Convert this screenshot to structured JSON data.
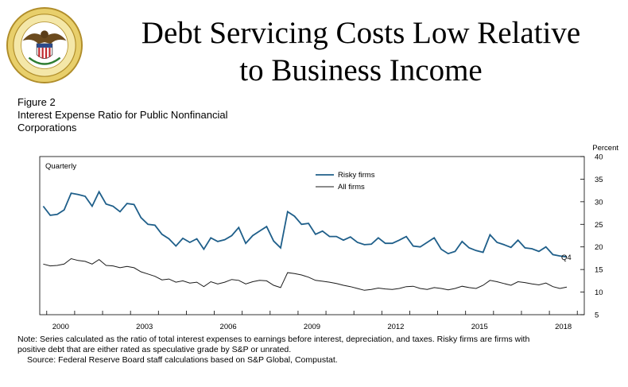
{
  "header": {
    "seal_name": "Board of Governors of the Federal Reserve System seal",
    "title_line1": "Debt Servicing Costs Low Relative",
    "title_line2": "to Business Income"
  },
  "figure": {
    "number": "Figure 2",
    "title_line1": "Interest Expense Ratio for Public Nonfinancial",
    "title_line2": "Corporations"
  },
  "chart_data": {
    "type": "line",
    "title": "Interest Expense Ratio for Public Nonfinancial Corporations",
    "frequency_label": "Quarterly",
    "ylabel": "Percent",
    "ylim": [
      5,
      40
    ],
    "xlim": [
      1999.75,
      2019.25
    ],
    "y_ticks": [
      5,
      10,
      15,
      20,
      25,
      30,
      35,
      40
    ],
    "x_ticks": [
      2000,
      2003,
      2006,
      2009,
      2012,
      2015,
      2018
    ],
    "x_tick_labels": [
      "2000",
      "2003",
      "2006",
      "2009",
      "2012",
      "2015",
      "2018"
    ],
    "end_annotation": "Q4",
    "series": [
      {
        "name": "Risky firms",
        "color": "#1f5f8a",
        "start": 1999.875,
        "step": 0.25,
        "values": [
          29.0,
          27.0,
          27.2,
          28.2,
          31.9,
          31.6,
          31.2,
          29.0,
          32.2,
          29.5,
          29.0,
          27.8,
          29.6,
          29.4,
          26.5,
          25.0,
          24.8,
          22.8,
          21.8,
          20.2,
          21.9,
          21.0,
          21.8,
          19.5,
          22.0,
          21.2,
          21.6,
          22.5,
          24.3,
          20.8,
          22.5,
          23.5,
          24.5,
          21.3,
          19.8,
          27.8,
          26.8,
          25.0,
          25.2,
          22.8,
          23.5,
          22.3,
          22.3,
          21.5,
          22.2,
          21.0,
          20.5,
          20.6,
          22.0,
          20.8,
          20.8,
          21.5,
          22.3,
          20.2,
          20.0,
          21.0,
          22.0,
          19.5,
          18.5,
          19.0,
          21.2,
          19.8,
          19.2,
          18.8,
          22.7,
          21.0,
          20.5,
          19.9,
          21.5,
          19.8,
          19.6,
          19.0,
          20.0,
          18.3,
          18.0,
          17.8
        ]
      },
      {
        "name": "All firms",
        "color": "#1a1a1a",
        "start": 1999.875,
        "step": 0.25,
        "values": [
          16.2,
          15.8,
          15.9,
          16.2,
          17.4,
          17.0,
          16.8,
          16.2,
          17.2,
          15.9,
          15.8,
          15.4,
          15.7,
          15.4,
          14.5,
          14.0,
          13.5,
          12.7,
          12.9,
          12.2,
          12.5,
          12.0,
          12.2,
          11.2,
          12.3,
          11.8,
          12.2,
          12.8,
          12.6,
          11.8,
          12.3,
          12.6,
          12.5,
          11.5,
          11.0,
          14.3,
          14.1,
          13.8,
          13.3,
          12.6,
          12.4,
          12.2,
          11.9,
          11.5,
          11.2,
          10.8,
          10.4,
          10.6,
          10.9,
          10.7,
          10.6,
          10.8,
          11.2,
          11.3,
          10.8,
          10.6,
          11.0,
          10.8,
          10.5,
          10.8,
          11.3,
          11.0,
          10.8,
          11.5,
          12.6,
          12.3,
          11.9,
          11.5,
          12.3,
          12.1,
          11.8,
          11.6,
          12.0,
          11.2,
          10.8,
          11.1
        ]
      }
    ]
  },
  "notes": {
    "note_line1": "Note: Series calculated as the ratio of total interest expenses to earnings before interest, depreciation, and taxes. Risky firms are firms with",
    "note_line2": "positive debt that are either rated as speculative grade by S&P or unrated.",
    "source": "Source: Federal Reserve Board staff calculations based on S&P Global, Compustat."
  }
}
